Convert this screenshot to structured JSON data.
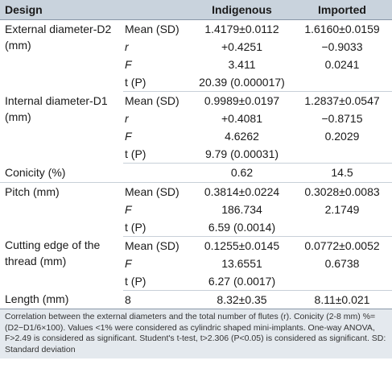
{
  "header": {
    "design": "Design",
    "indigenous": "Indigenous",
    "imported": "Imported"
  },
  "rows": {
    "ext_label": "External diameter-D2 (mm)",
    "ext_mean_stat": "Mean (SD)",
    "ext_mean_ind": "1.4179±0.0112",
    "ext_mean_imp": "1.6160±0.0159",
    "ext_r_stat": "r",
    "ext_r_ind": "+0.4251",
    "ext_r_imp": "−0.9033",
    "ext_f_stat": "F",
    "ext_f_ind": "3.411",
    "ext_f_imp": "0.0241",
    "ext_t_stat": "t (P)",
    "ext_t_val": "20.39 (0.000017)",
    "int_label": "Internal diameter-D1 (mm)",
    "int_mean_stat": "Mean (SD)",
    "int_mean_ind": "0.9989±0.0197",
    "int_mean_imp": "1.2837±0.0547",
    "int_r_stat": "r",
    "int_r_ind": "+0.4081",
    "int_r_imp": "−0.8715",
    "int_f_stat": "F",
    "int_f_ind": "4.6262",
    "int_f_imp": "0.2029",
    "int_t_stat": "t (P)",
    "int_t_val": "9.79 (0.00031)",
    "con_label": "Conicity (%)",
    "con_ind": "0.62",
    "con_imp": "14.5",
    "pitch_label": "Pitch (mm)",
    "pitch_mean_stat": "Mean (SD)",
    "pitch_mean_ind": "0.3814±0.0224",
    "pitch_mean_imp": "0.3028±0.0083",
    "pitch_f_stat": "F",
    "pitch_f_ind": "186.734",
    "pitch_f_imp": "2.1749",
    "pitch_t_stat": "t (P)",
    "pitch_t_val": "6.59 (0.0014)",
    "cut_label": "Cutting edge of the thread (mm)",
    "cut_mean_stat": "Mean (SD)",
    "cut_mean_ind": "0.1255±0.0145",
    "cut_mean_imp": "0.0772±0.0052",
    "cut_f_stat": "F",
    "cut_f_ind": "13.6551",
    "cut_f_imp": "0.6738",
    "cut_t_stat": "t (P)",
    "cut_t_val": "6.27 (0.0017)",
    "len_label": "Length (mm)",
    "len_stat": "8",
    "len_ind": "8.32±0.35",
    "len_imp": "8.11±0.021"
  },
  "footnote": "Correlation between the external diameters and the total number of flutes (r). Conicity (2-8 mm) %=(D2−D1/6×100). Values <1% were considered as cylindric shaped mini-implants. One-way ANOVA, F>2.49 is considered as significant. Student's t-test, t>2.306 (P<0.05) is considered as significant. SD: Standard deviation"
}
